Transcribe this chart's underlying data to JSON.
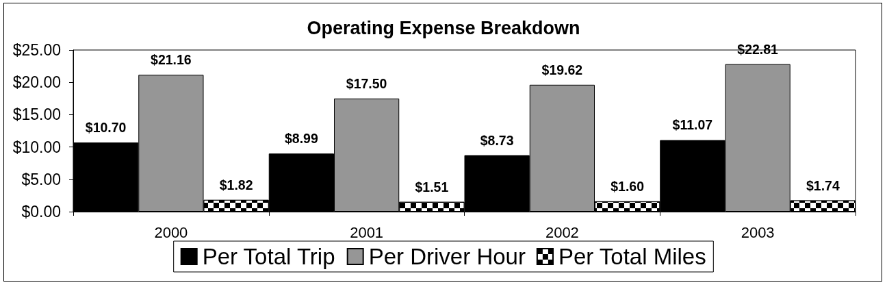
{
  "chart_data": {
    "type": "bar",
    "title": "Operating Expense Breakdown",
    "categories": [
      "2000",
      "2001",
      "2002",
      "2003"
    ],
    "series": [
      {
        "name": "Per Total Trip",
        "color": "#000000",
        "values": [
          10.7,
          8.99,
          8.73,
          11.07
        ],
        "value_labels": [
          "$10.70",
          "$8.99",
          "$8.73",
          "$11.07"
        ]
      },
      {
        "name": "Per Driver Hour",
        "color": "#969696",
        "values": [
          21.16,
          17.5,
          19.62,
          22.81
        ],
        "value_labels": [
          "$21.16",
          "$17.50",
          "$19.62",
          "$22.81"
        ]
      },
      {
        "name": "Per Total Miles",
        "color": "#000000",
        "values": [
          1.82,
          1.51,
          1.6,
          1.74
        ],
        "value_labels": [
          "$1.82",
          "$1.51",
          "$1.60",
          "$1.74"
        ]
      }
    ],
    "ylim": [
      0,
      25
    ],
    "yticks": [
      {
        "value": 0,
        "label": "$0.00"
      },
      {
        "value": 5,
        "label": "$5.00"
      },
      {
        "value": 10,
        "label": "$10.00"
      },
      {
        "value": 15,
        "label": "$15.00"
      },
      {
        "value": 20,
        "label": "$20.00"
      },
      {
        "value": 25,
        "label": "$25.00"
      }
    ],
    "grid": false,
    "legend": "bottom"
  }
}
